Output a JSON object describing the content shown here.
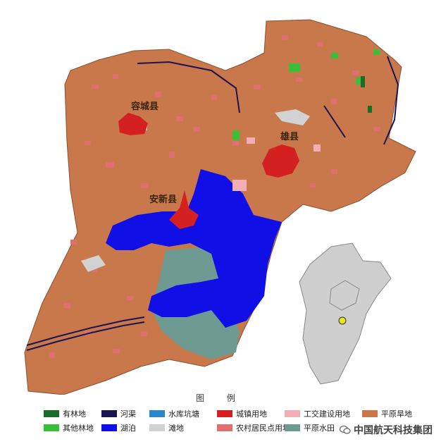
{
  "map": {
    "labels": {
      "rongcheng": "容城县",
      "xiongxian": "雄县",
      "anxin": "安新县"
    }
  },
  "legend": {
    "title": "图 例",
    "items": [
      {
        "key": "youlin",
        "label": "有林地",
        "color": "#1b6b2a"
      },
      {
        "key": "hequ",
        "label": "河渠",
        "color": "#1a1450"
      },
      {
        "key": "shuiku",
        "label": "水库坑塘",
        "color": "#2a86c8"
      },
      {
        "key": "chengzhen",
        "label": "城镇用地",
        "color": "#d42020"
      },
      {
        "key": "gongjiao",
        "label": "工交建设用地",
        "color": "#f2aeb4"
      },
      {
        "key": "pingyuanhan",
        "label": "平原旱地",
        "color": "#c8784a"
      },
      {
        "key": "qitalin",
        "label": "其他林地",
        "color": "#3bbf3b"
      },
      {
        "key": "hupo",
        "label": "湖泊",
        "color": "#1010e6"
      },
      {
        "key": "tandi",
        "label": "滩地",
        "color": "#d2d2d2"
      },
      {
        "key": "nongcun",
        "label": "农村居民点用地",
        "color": "#e07070"
      },
      {
        "key": "pingyuanshui",
        "label": "平原水田",
        "color": "#6e9a92"
      }
    ]
  },
  "colors": {
    "farmland": "#c8784a",
    "lake": "#1010e6",
    "urban": "#d42020",
    "rural": "#e07070",
    "canal": "#1a1450",
    "greyflat": "#d2d2d2",
    "paddy": "#6e9a92",
    "inset_fill": "#cfcfcf",
    "inset_mark": "#e6e61a"
  },
  "watermark": {
    "text": "中国航天科技集团"
  }
}
